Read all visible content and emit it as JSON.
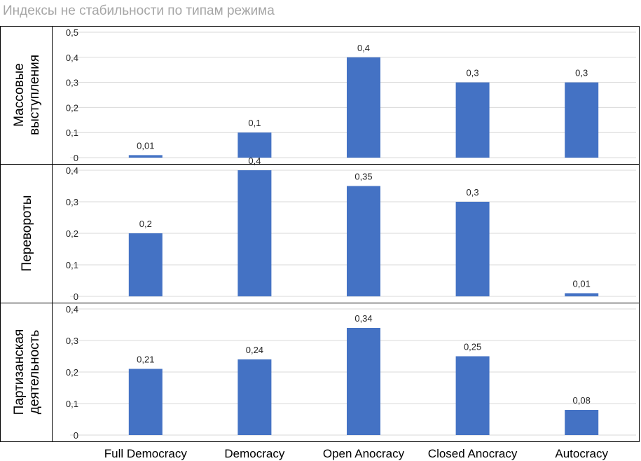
{
  "chart_data": {
    "type": "bar",
    "title": "Индексы не стабильности по типам режима",
    "categories": [
      "Full Democracy",
      "Democracy",
      "Open Anocracy",
      "Closed Anocracy",
      "Autocracy"
    ],
    "bar_color": "#4472c4",
    "panels": [
      {
        "label_lines": [
          "Массовые",
          "выступления"
        ],
        "values": [
          0.01,
          0.1,
          0.4,
          0.3,
          0.3
        ],
        "value_labels": [
          "0,01",
          "0,1",
          "0,4",
          "0,3",
          "0,3"
        ],
        "ylim": [
          0,
          0.5
        ],
        "ticks": [
          "0",
          "0,1",
          "0,2",
          "0,3",
          "0,4",
          "0,5"
        ]
      },
      {
        "label_lines": [
          "Перевороты"
        ],
        "values": [
          0.2,
          0.4,
          0.35,
          0.3,
          0.01
        ],
        "value_labels": [
          "0,2",
          "0,4",
          "0,35",
          "0,3",
          "0,01"
        ],
        "ylim": [
          0,
          0.4
        ],
        "ticks": [
          "0",
          "0,1",
          "0,2",
          "0,3",
          "0,4"
        ]
      },
      {
        "label_lines": [
          "Партизанская",
          "деятельность"
        ],
        "values": [
          0.21,
          0.24,
          0.34,
          0.25,
          0.08
        ],
        "value_labels": [
          "0,21",
          "0,24",
          "0,34",
          "0,25",
          "0,08"
        ],
        "ylim": [
          0,
          0.4
        ],
        "ticks": [
          "0",
          "0,1",
          "0,2",
          "0,3",
          "0,4"
        ]
      }
    ]
  }
}
